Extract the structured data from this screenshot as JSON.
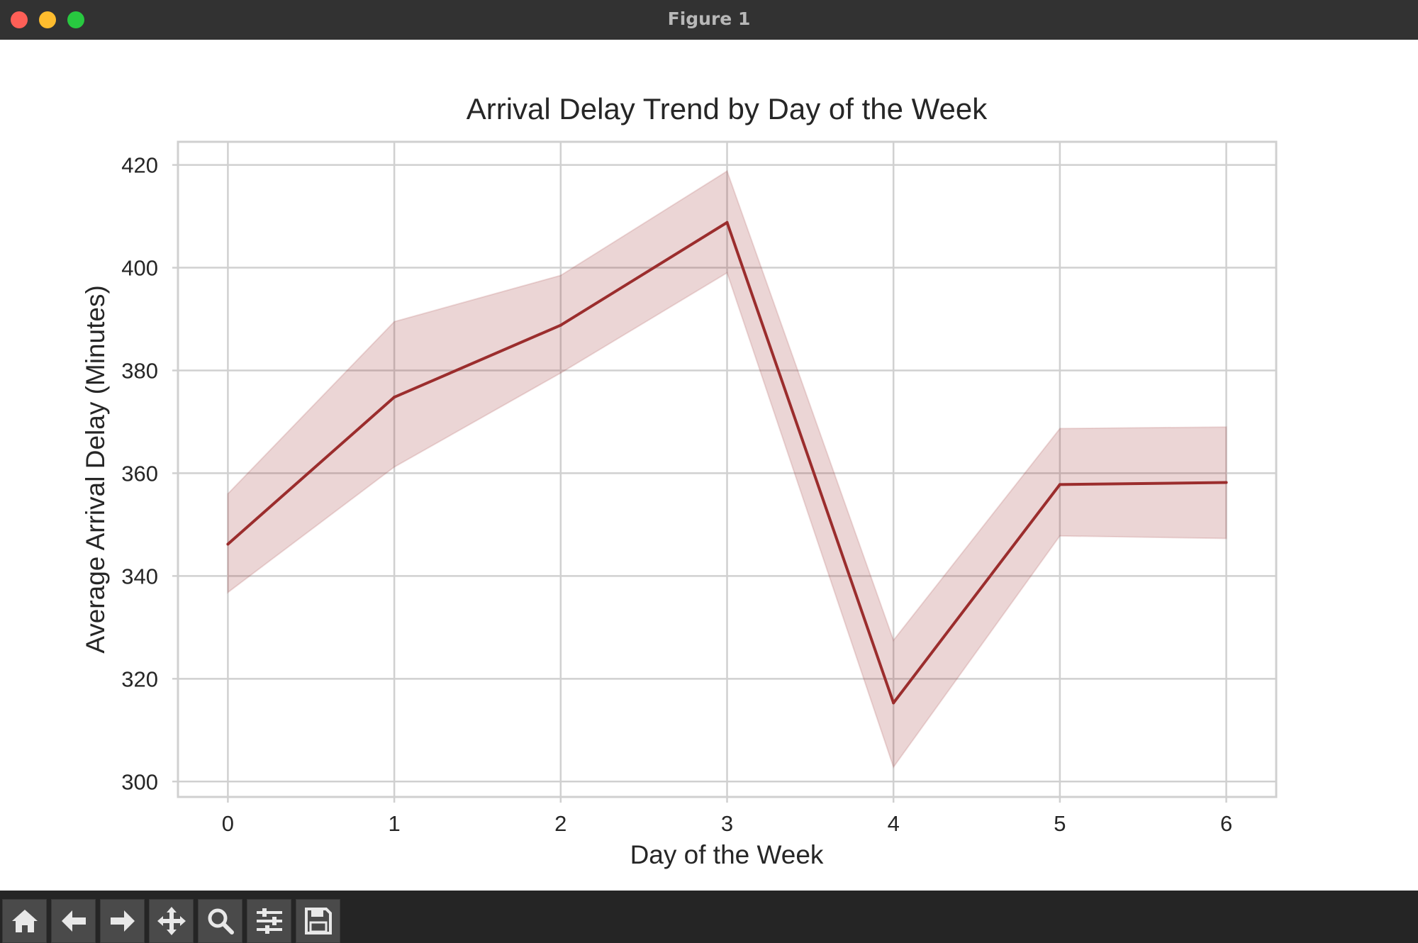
{
  "window": {
    "title": "Figure 1"
  },
  "toolbar": {
    "buttons": [
      {
        "icon": "home-icon",
        "action": "home"
      },
      {
        "icon": "arrow-left-icon",
        "action": "back"
      },
      {
        "icon": "arrow-right-icon",
        "action": "forward"
      },
      {
        "icon": "move-icon",
        "action": "pan"
      },
      {
        "icon": "magnifier-icon",
        "action": "zoom"
      },
      {
        "icon": "sliders-icon",
        "action": "configure-subplots"
      },
      {
        "icon": "floppy-disk-icon",
        "action": "save"
      }
    ]
  },
  "colors": {
    "line": "#9b2d2d",
    "band": "#9b2d2d",
    "grid": "#d0d0d0",
    "text": "#262626"
  },
  "chart_data": {
    "type": "line",
    "title": "Arrival Delay Trend by Day of the Week",
    "xlabel": "Day of the Week",
    "ylabel": "Average Arrival Delay (Minutes)",
    "x": [
      0,
      1,
      2,
      3,
      4,
      5,
      6
    ],
    "xticks": [
      "0",
      "1",
      "2",
      "3",
      "4",
      "5",
      "6"
    ],
    "yticks": [
      "300",
      "320",
      "340",
      "360",
      "380",
      "400",
      "420"
    ],
    "xlim": [
      -0.3,
      6.3
    ],
    "ylim": [
      297,
      424.5
    ],
    "grid": true,
    "series": [
      {
        "values": [
          346.2,
          374.8,
          388.8,
          408.8,
          315.3,
          357.8,
          358.2
        ],
        "ci_lower": [
          336.8,
          361.2,
          379.5,
          399.0,
          302.8,
          347.8,
          347.3
        ],
        "ci_upper": [
          356.0,
          389.5,
          398.5,
          418.8,
          327.5,
          368.7,
          369.0
        ]
      }
    ]
  }
}
